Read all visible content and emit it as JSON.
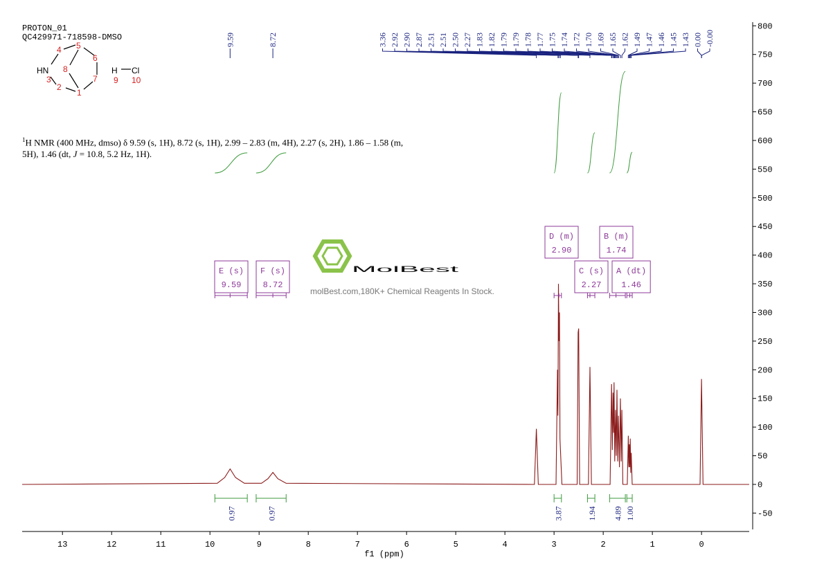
{
  "chart_data": {
    "type": "nmr",
    "header": [
      "PROTON_01",
      "QC429971-718598-DMSO"
    ],
    "structure": {
      "atoms": [
        "HN",
        "H",
        "Cl"
      ],
      "numbers": [
        1,
        2,
        3,
        4,
        5,
        6,
        7,
        8,
        9,
        10
      ]
    },
    "description": [
      "1",
      "H NMR (400 MHz, dmso) δ 9.59 (s, 1H), 8.72 (s, 1H), 2.99 – 2.83 (m, 4H), 2.27 (s, 2H), 1.86 – 1.58 (m, 5H), 1.46 (dt, ",
      "J",
      " = 10.8, 5.2 Hz, 1H)."
    ],
    "watermark": {
      "brand": "MolBest",
      "tagline": "molBest.com,180K+ Chemical Reagents In Stock."
    },
    "x_label": "f1 (ppm)",
    "xlim": [
      13.82,
      -0.97
    ],
    "xticks": [
      13,
      12,
      11,
      10,
      9,
      8,
      7,
      6,
      5,
      4,
      3,
      2,
      1,
      0
    ],
    "ylim": [
      -78.5,
      806.4
    ],
    "yticks": [
      -50,
      0,
      50,
      100,
      150,
      200,
      250,
      300,
      350,
      400,
      450,
      500,
      550,
      600,
      650,
      700,
      750,
      800
    ],
    "spectrum": {
      "color": "#8b1a1a",
      "x": [
        13.82,
        9.85,
        9.7,
        9.59,
        9.48,
        9.3,
        8.95,
        8.82,
        8.72,
        8.62,
        8.45,
        3.4,
        3.36,
        3.32,
        2.96,
        2.93,
        2.92,
        2.91,
        2.9,
        2.89,
        2.88,
        2.87,
        2.84,
        2.53,
        2.51,
        2.5,
        2.48,
        2.3,
        2.27,
        2.24,
        1.86,
        1.83,
        1.815,
        1.8,
        1.79,
        1.78,
        1.765,
        1.75,
        1.735,
        1.72,
        1.705,
        1.69,
        1.67,
        1.65,
        1.635,
        1.62,
        1.6,
        1.51,
        1.49,
        1.48,
        1.47,
        1.46,
        1.45,
        1.44,
        1.43,
        1.41,
        0.03,
        0.0,
        -0.03,
        -0.97
      ],
      "values": [
        0,
        2,
        12,
        27,
        12,
        2,
        2,
        10,
        21,
        10,
        2,
        0,
        97,
        0,
        0,
        200,
        120,
        350,
        250,
        300,
        80,
        60,
        0,
        0,
        265,
        272,
        0,
        0,
        205,
        0,
        0,
        175,
        60,
        160,
        90,
        178,
        40,
        130,
        50,
        165,
        40,
        120,
        30,
        150,
        40,
        130,
        0,
        0,
        85,
        30,
        70,
        30,
        80,
        20,
        55,
        0,
        0,
        184,
        0,
        0
      ]
    },
    "peak_picks": {
      "color": "#1a237e",
      "values": [
        9.59,
        8.72,
        3.36,
        2.92,
        2.9,
        2.87,
        2.51,
        2.51,
        2.5,
        2.27,
        1.83,
        1.82,
        1.79,
        1.79,
        1.78,
        1.77,
        1.75,
        1.74,
        1.72,
        1.7,
        1.69,
        1.65,
        1.62,
        1.49,
        1.47,
        1.46,
        1.45,
        1.43,
        0.0,
        0.0
      ],
      "value_labels": [
        "9.59",
        "8.72",
        "3.36",
        "2.92",
        "2.90",
        "2.87",
        "2.51",
        "2.51",
        "2.50",
        "2.27",
        "1.83",
        "1.82",
        "1.79",
        "1.79",
        "1.78",
        "1.77",
        "1.75",
        "1.74",
        "1.72",
        "1.70",
        "1.69",
        "1.65",
        "1.62",
        "1.49",
        "1.47",
        "1.46",
        "1.45",
        "1.43",
        "0.00",
        "-0.00"
      ]
    },
    "integrals": {
      "color": "#3c9a3c",
      "label_color": "#1a237e",
      "ranges": [
        [
          9.9,
          9.24
        ],
        [
          9.06,
          8.45
        ],
        [
          3.0,
          2.85
        ],
        [
          2.32,
          2.17
        ],
        [
          1.87,
          1.55
        ],
        [
          1.52,
          1.41
        ]
      ],
      "values": [
        0.97,
        0.97,
        3.87,
        1.94,
        4.89,
        1.0
      ],
      "value_labels": [
        "0.97",
        "0.97",
        "3.87",
        "1.94",
        "4.89",
        "1.00"
      ]
    },
    "multiplets": {
      "color": "#8e3a9a",
      "names": [
        "E (s)",
        "F (s)",
        "D (m)",
        "C (s)",
        "B (m)",
        "A (dt)"
      ],
      "shifts": [
        9.59,
        8.72,
        2.9,
        2.27,
        1.74,
        1.46
      ],
      "shift_labels": [
        "9.59",
        "8.72",
        "2.90",
        "2.27",
        "1.74",
        "1.46"
      ],
      "ranges": [
        [
          9.9,
          9.24
        ],
        [
          9.06,
          8.45
        ],
        [
          3.0,
          2.85
        ],
        [
          2.32,
          2.17
        ],
        [
          1.87,
          1.55
        ],
        [
          1.52,
          1.41
        ]
      ]
    }
  }
}
